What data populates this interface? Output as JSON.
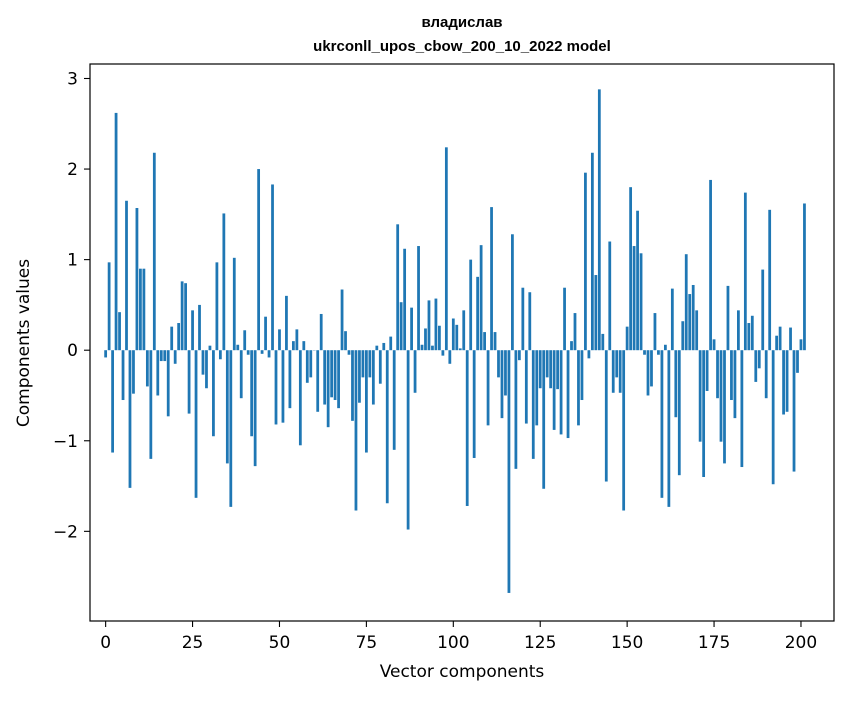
{
  "chart_data": {
    "type": "bar",
    "title": "владислав",
    "subtitle": "ukrconll_upos_cbow_200_10_2022 model",
    "xlabel": "Vector components",
    "ylabel": "Components values",
    "xlim": [
      -4.5,
      209.5
    ],
    "ylim": [
      -2.99,
      3.16
    ],
    "xticks": [
      0,
      25,
      50,
      75,
      100,
      125,
      150,
      175,
      200
    ],
    "yticks": [
      -2,
      -1,
      0,
      1,
      2,
      3
    ],
    "xtick_labels": [
      "0",
      "25",
      "50",
      "75",
      "100",
      "125",
      "150",
      "175",
      "200"
    ],
    "ytick_labels": [
      "−2",
      "−1",
      "0",
      "1",
      "2",
      "3"
    ],
    "grid": false,
    "bar_color": "#1f77b4",
    "series": [
      {
        "values": [
          -0.08,
          0.97,
          -1.13,
          2.62,
          0.42,
          -0.55,
          1.65,
          -1.52,
          -0.48,
          1.57,
          0.9,
          0.9,
          -0.4,
          -1.2,
          2.18,
          -0.5,
          -0.12,
          -0.12,
          -0.73,
          0.26,
          -0.15,
          0.3,
          0.76,
          0.74,
          -0.7,
          0.44,
          -1.63,
          0.5,
          -0.27,
          -0.42,
          0.05,
          -0.95,
          0.97,
          -0.1,
          1.51,
          -1.25,
          -1.73,
          1.02,
          0.06,
          -0.53,
          0.22,
          -0.05,
          -0.95,
          -1.28,
          2.0,
          -0.04,
          0.37,
          -0.08,
          1.83,
          -0.82,
          0.23,
          -0.8,
          0.6,
          -0.64,
          0.1,
          0.23,
          -1.05,
          0.1,
          -0.36,
          -0.3,
          0.0,
          -0.68,
          0.4,
          -0.6,
          -0.85,
          -0.52,
          -0.55,
          -0.64,
          0.67,
          0.21,
          -0.05,
          -0.78,
          -1.77,
          -0.58,
          -0.3,
          -1.13,
          -0.3,
          -0.6,
          0.05,
          -0.37,
          0.08,
          -1.69,
          0.15,
          -1.1,
          1.39,
          0.53,
          1.12,
          -1.98,
          0.47,
          -0.47,
          1.15,
          0.06,
          0.24,
          0.55,
          0.05,
          0.57,
          0.27,
          -0.06,
          2.24,
          -0.15,
          0.35,
          0.28,
          0.02,
          0.44,
          -1.72,
          1.0,
          -1.19,
          0.81,
          1.16,
          0.2,
          -0.83,
          1.58,
          0.2,
          -0.3,
          -0.75,
          -0.5,
          -2.68,
          1.28,
          -1.31,
          -0.11,
          0.69,
          -0.81,
          0.64,
          -1.2,
          -0.83,
          -0.42,
          -1.53,
          -0.3,
          -0.42,
          -0.88,
          -0.43,
          -0.93,
          0.69,
          -0.97,
          0.1,
          0.41,
          -0.83,
          -0.55,
          1.96,
          -0.09,
          2.18,
          0.83,
          2.88,
          0.18,
          -1.45,
          1.2,
          -0.47,
          -0.3,
          -0.47,
          -1.77,
          0.26,
          1.8,
          1.15,
          1.54,
          1.07,
          -0.05,
          -0.5,
          -0.4,
          0.41,
          -0.05,
          -1.63,
          0.06,
          -1.73,
          0.68,
          -0.74,
          -1.38,
          0.32,
          1.06,
          0.62,
          0.72,
          0.44,
          -1.01,
          -1.4,
          -0.45,
          1.88,
          0.12,
          -0.53,
          -1.01,
          -1.25,
          0.71,
          -0.55,
          -0.75,
          0.44,
          -1.29,
          1.74,
          0.3,
          0.38,
          -0.35,
          -0.2,
          0.89,
          -0.53,
          1.55,
          -1.48,
          0.16,
          0.26,
          -0.71,
          -0.68,
          0.25,
          -1.34,
          -0.25,
          0.12,
          1.62
        ]
      }
    ]
  }
}
